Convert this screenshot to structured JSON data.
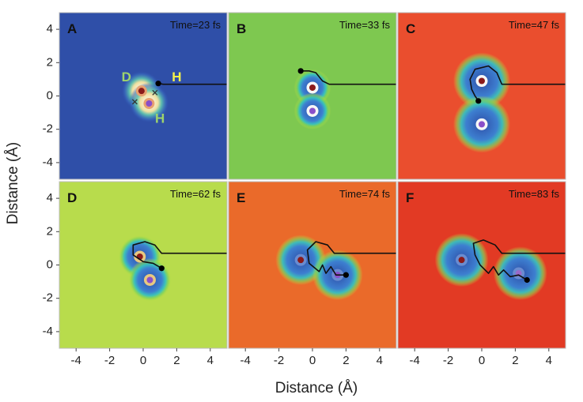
{
  "chart_data": {
    "type": "heatmap",
    "xlabel": "Distance (Å)",
    "ylabel": "Distance (Å)",
    "xlim": [
      -5,
      5
    ],
    "ylim": [
      -5,
      5
    ],
    "xticks": [
      "-4",
      "-2",
      "0",
      "2",
      "4"
    ],
    "yticks": [
      "4",
      "2",
      "0",
      "-2",
      "-4"
    ],
    "grid": false,
    "track_start": [
      5,
      0.7
    ],
    "panels": [
      {
        "label": "A",
        "time": "Time=23 fs",
        "background": "#2f4fa8",
        "lobes": [
          {
            "x": -0.1,
            "y": 0.3,
            "r": 1.2
          },
          {
            "x": 0.35,
            "y": -0.4,
            "r": 1.2
          }
        ],
        "ring": "#e8a070",
        "atoms": [
          {
            "x": -0.1,
            "y": 0.3,
            "color": "#8b1a1a"
          },
          {
            "x": 0.35,
            "y": -0.45,
            "color": "#8a4fc9"
          }
        ],
        "electron": [
          0.9,
          0.75
        ],
        "path": [
          [
            5,
            0.7
          ],
          [
            1.2,
            0.7
          ],
          [
            0.9,
            0.75
          ]
        ],
        "crosses": [
          [
            -0.5,
            -0.35
          ],
          [
            0.7,
            0.2
          ]
        ],
        "atom_labels": [
          {
            "text": "D",
            "x": -1.0,
            "y": 1.1,
            "color": "#9ed46c"
          },
          {
            "text": "H",
            "x": 2.0,
            "y": 1.1,
            "color": "#f4f04a"
          },
          {
            "text": "H",
            "x": 1.0,
            "y": -1.4,
            "color": "#9ed46c"
          }
        ]
      },
      {
        "label": "B",
        "time": "Time=33 fs",
        "background": "#7ec850",
        "lobes": [
          {
            "x": 0,
            "y": 0.5,
            "r": 1.1
          },
          {
            "x": 0,
            "y": -0.9,
            "r": 1.1
          }
        ],
        "ring": "#f7f7f7",
        "atoms": [
          {
            "x": 0,
            "y": 0.5,
            "color": "#8b1a1a"
          },
          {
            "x": 0,
            "y": -0.9,
            "color": "#8a4fc9"
          }
        ],
        "electron": [
          -0.7,
          1.5
        ],
        "path": [
          [
            5,
            0.7
          ],
          [
            1.0,
            0.7
          ],
          [
            0.6,
            0.9
          ],
          [
            0.2,
            1.4
          ],
          [
            -0.2,
            1.5
          ],
          [
            -0.7,
            1.5
          ]
        ],
        "crosses": [],
        "atom_labels": []
      },
      {
        "label": "C",
        "time": "Time=47 fs",
        "background": "#ea4e2e",
        "lobes": [
          {
            "x": 0,
            "y": 0.9,
            "r": 1.7
          },
          {
            "x": 0,
            "y": -1.7,
            "r": 1.7
          }
        ],
        "ring": "#f7f7f7",
        "atoms": [
          {
            "x": 0,
            "y": 0.9,
            "color": "#8b1a1a"
          },
          {
            "x": 0,
            "y": -1.7,
            "color": "#8a4fc9"
          }
        ],
        "electron": [
          -0.2,
          -0.3
        ],
        "path": [
          [
            5,
            0.7
          ],
          [
            1.2,
            0.7
          ],
          [
            0.9,
            1.4
          ],
          [
            0.4,
            1.8
          ],
          [
            -0.4,
            1.6
          ],
          [
            -0.7,
            1.0
          ],
          [
            -0.6,
            0.4
          ],
          [
            -0.4,
            0.0
          ],
          [
            -0.2,
            -0.3
          ]
        ],
        "crosses": [],
        "atom_labels": []
      },
      {
        "label": "D",
        "time": "Time=62 fs",
        "background": "#b8dc4c",
        "lobes": [
          {
            "x": -0.2,
            "y": 0.5,
            "r": 1.3
          },
          {
            "x": 0.4,
            "y": -0.9,
            "r": 1.3
          }
        ],
        "ring": "#e8c880",
        "atoms": [
          {
            "x": -0.2,
            "y": 0.5,
            "color": "#8b1a1a"
          },
          {
            "x": 0.4,
            "y": -0.9,
            "color": "#8a4fc9"
          }
        ],
        "electron": [
          1.1,
          -0.2
        ],
        "path": [
          [
            5,
            0.7
          ],
          [
            1.1,
            0.7
          ],
          [
            0.7,
            1.2
          ],
          [
            0.1,
            1.4
          ],
          [
            -0.6,
            1.2
          ],
          [
            -0.6,
            0.6
          ],
          [
            0.0,
            0.2
          ],
          [
            0.6,
            0.1
          ],
          [
            1.1,
            -0.2
          ]
        ],
        "crosses": [],
        "atom_labels": []
      },
      {
        "label": "E",
        "time": "Time=74 fs",
        "background": "#ea6a2a",
        "lobes": [
          {
            "x": -0.7,
            "y": 0.3,
            "r": 1.5
          },
          {
            "x": 1.5,
            "y": -0.6,
            "r": 1.5
          }
        ],
        "ring": "#6a8cd0",
        "atoms": [
          {
            "x": -0.7,
            "y": 0.3,
            "color": "#8b1a1a"
          },
          {
            "x": 1.5,
            "y": -0.6,
            "color": "#8a4fc9"
          }
        ],
        "electron": [
          2.0,
          -0.6
        ],
        "path": [
          [
            5,
            0.7
          ],
          [
            1.3,
            0.7
          ],
          [
            0.9,
            1.2
          ],
          [
            0.2,
            1.4
          ],
          [
            -0.3,
            0.9
          ],
          [
            -0.2,
            0.1
          ],
          [
            0.4,
            -0.4
          ],
          [
            0.6,
            0.0
          ],
          [
            0.8,
            -0.5
          ],
          [
            1.1,
            -0.1
          ],
          [
            1.4,
            -0.6
          ],
          [
            2.0,
            -0.6
          ]
        ],
        "crosses": [],
        "atom_labels": []
      },
      {
        "label": "F",
        "time": "Time=83 fs",
        "background": "#e23a24",
        "lobes": [
          {
            "x": -1.2,
            "y": 0.3,
            "r": 1.6
          },
          {
            "x": 2.3,
            "y": -0.5,
            "r": 1.6
          }
        ],
        "ring": "#6a8cd0",
        "atoms": [
          {
            "x": -1.2,
            "y": 0.3,
            "color": "#8b1a1a"
          },
          {
            "x": 2.2,
            "y": -0.5,
            "color": "#9a6ac9"
          }
        ],
        "electron": [
          2.7,
          -0.9
        ],
        "path": [
          [
            5,
            0.7
          ],
          [
            1.2,
            0.7
          ],
          [
            0.8,
            1.2
          ],
          [
            0.1,
            1.5
          ],
          [
            -0.5,
            1.3
          ],
          [
            -0.4,
            0.6
          ],
          [
            -0.1,
            0.0
          ],
          [
            0.4,
            -0.5
          ],
          [
            0.7,
            -0.1
          ],
          [
            1.0,
            -0.6
          ],
          [
            1.3,
            -0.3
          ],
          [
            1.7,
            -0.7
          ],
          [
            2.2,
            -0.6
          ],
          [
            2.7,
            -0.9
          ]
        ],
        "crosses": [],
        "atom_labels": []
      }
    ]
  }
}
